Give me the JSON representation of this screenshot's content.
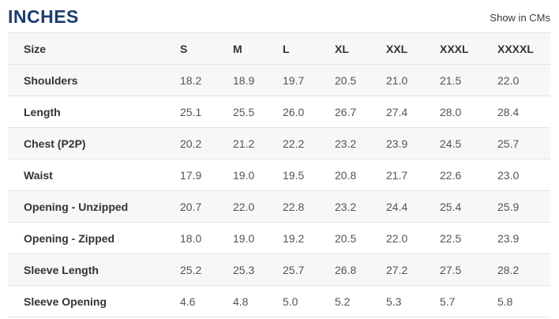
{
  "page": {
    "title": "INCHES",
    "unit_toggle_label": "Show in CMs"
  },
  "colors": {
    "title_color": "#1d3c6e",
    "header_text": "#333333",
    "value_text": "#545454",
    "stripe": "#f7f7f7",
    "border": "#e3e3e3"
  },
  "table": {
    "header": [
      "Size",
      "S",
      "M",
      "L",
      "XL",
      "XXL",
      "XXXL",
      "XXXXL"
    ],
    "rows": [
      {
        "label": "Shoulders",
        "values": [
          "18.2",
          "18.9",
          "19.7",
          "20.5",
          "21.0",
          "21.5",
          "22.0"
        ]
      },
      {
        "label": "Length",
        "values": [
          "25.1",
          "25.5",
          "26.0",
          "26.7",
          "27.4",
          "28.0",
          "28.4"
        ]
      },
      {
        "label": "Chest (P2P)",
        "values": [
          "20.2",
          "21.2",
          "22.2",
          "23.2",
          "23.9",
          "24.5",
          "25.7"
        ]
      },
      {
        "label": "Waist",
        "values": [
          "17.9",
          "19.0",
          "19.5",
          "20.8",
          "21.7",
          "22.6",
          "23.0"
        ]
      },
      {
        "label": "Opening - Unzipped",
        "values": [
          "20.7",
          "22.0",
          "22.8",
          "23.2",
          "24.4",
          "25.4",
          "25.9"
        ]
      },
      {
        "label": "Opening - Zipped",
        "values": [
          "18.0",
          "19.0",
          "19.2",
          "20.5",
          "22.0",
          "22.5",
          "23.9"
        ]
      },
      {
        "label": "Sleeve Length",
        "values": [
          "25.2",
          "25.3",
          "25.7",
          "26.8",
          "27.2",
          "27.5",
          "28.2"
        ]
      },
      {
        "label": "Sleeve Opening",
        "values": [
          "4.6",
          "4.8",
          "5.0",
          "5.2",
          "5.3",
          "5.7",
          "5.8"
        ]
      }
    ]
  }
}
